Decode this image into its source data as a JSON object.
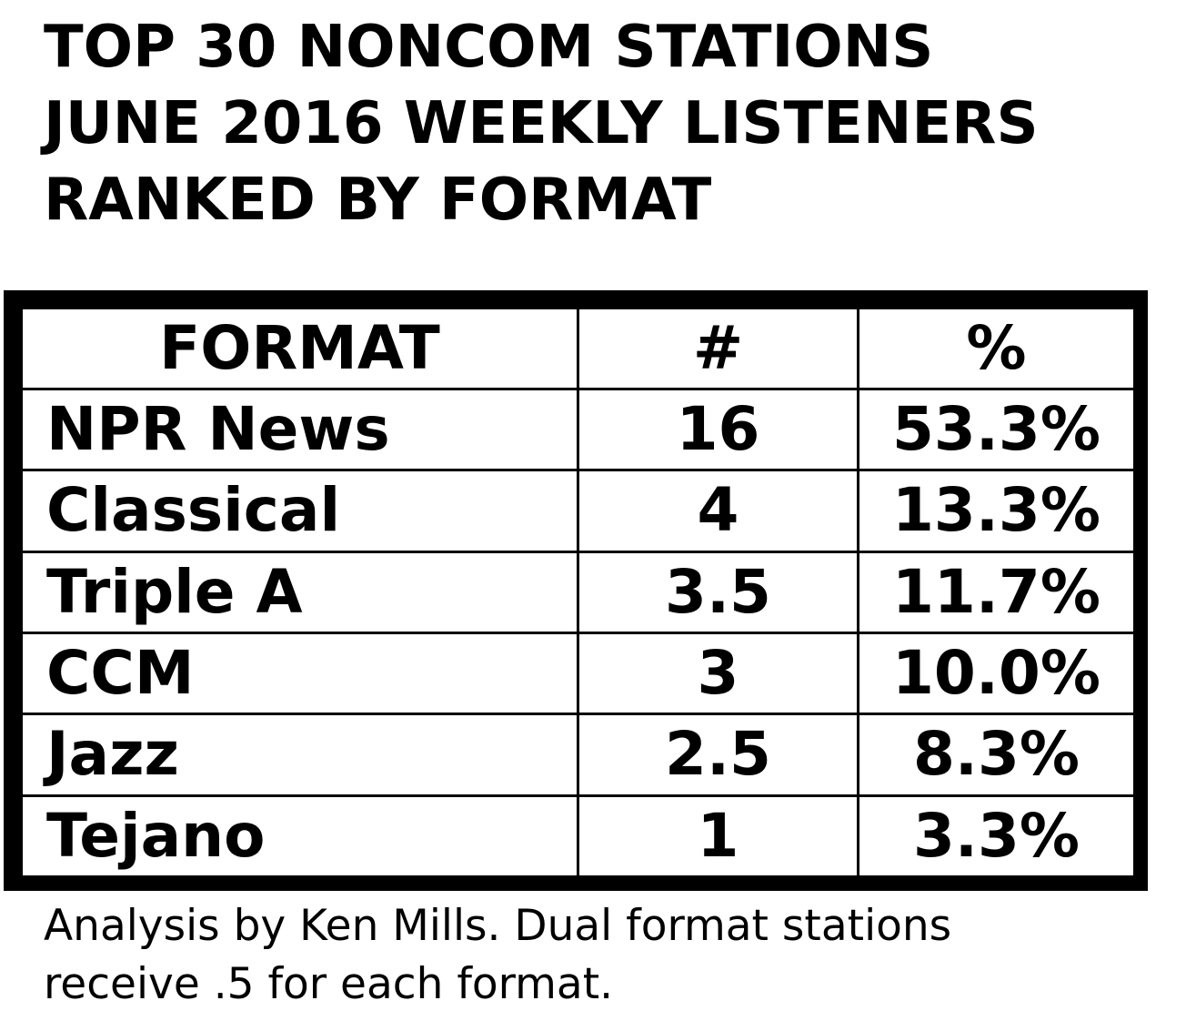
{
  "title": {
    "line1": "TOP 30 NONCOM STATIONS",
    "line2": "JUNE 2016 WEEKLY LISTENERS",
    "line3": "RANKED BY FORMAT"
  },
  "note": {
    "line1": "Analysis by Ken Mills. Dual format stations",
    "line2": "receive .5 for each format."
  },
  "chart_data": {
    "type": "table",
    "title": "TOP 30 NONCOM STATIONS JUNE 2016 WEEKLY LISTENERS RANKED BY FORMAT",
    "columns": [
      "FORMAT",
      "#",
      "%"
    ],
    "rows": [
      {
        "format": "NPR News",
        "count": "16",
        "pct": "53.3%"
      },
      {
        "format": "Classical",
        "count": "4",
        "pct": "13.3%"
      },
      {
        "format": "Triple A",
        "count": "3.5",
        "pct": "11.7%"
      },
      {
        "format": "CCM",
        "count": "3",
        "pct": "10.0%"
      },
      {
        "format": "Jazz",
        "count": "2.5",
        "pct": "8.3%"
      },
      {
        "format": "Tejano",
        "count": "1",
        "pct": "3.3%"
      }
    ]
  }
}
